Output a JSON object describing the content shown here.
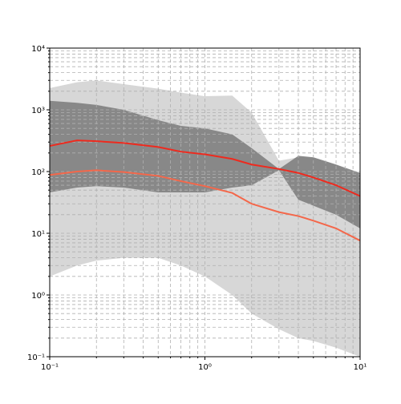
{
  "chart_data": {
    "type": "line",
    "xlog": true,
    "ylog": true,
    "grid": true,
    "xlim": [
      0.1,
      10
    ],
    "ylim": [
      0.1,
      10000
    ],
    "xticks": [
      {
        "value": 0.1,
        "label": "10⁻¹"
      },
      {
        "value": 1,
        "label": "10⁰"
      },
      {
        "value": 10,
        "label": "10¹"
      }
    ],
    "yticks": [
      {
        "value": 0.1,
        "label": "10⁻¹"
      },
      {
        "value": 1,
        "label": "10⁰"
      },
      {
        "value": 10,
        "label": "10¹"
      },
      {
        "value": 100,
        "label": "10²"
      },
      {
        "value": 1000,
        "label": "10³"
      },
      {
        "value": 10000,
        "label": "10⁴"
      }
    ],
    "xminorticks": [
      0.2,
      0.3,
      0.4,
      0.5,
      0.6,
      0.7,
      0.8,
      0.9,
      2,
      3,
      4,
      5,
      6,
      7,
      8,
      9
    ],
    "yminorticks": [
      0.2,
      0.3,
      0.4,
      0.5,
      0.6,
      0.7,
      0.8,
      0.9,
      2,
      3,
      4,
      5,
      6,
      7,
      8,
      9,
      20,
      30,
      40,
      50,
      60,
      70,
      80,
      90,
      200,
      300,
      400,
      500,
      600,
      700,
      800,
      900,
      2000,
      3000,
      4000,
      5000,
      6000,
      7000,
      8000,
      9000
    ],
    "x": [
      0.1,
      0.15,
      0.2,
      0.3,
      0.5,
      0.7,
      1,
      1.5,
      2,
      3,
      4,
      5,
      7,
      10
    ],
    "bands": [
      {
        "color": "#d3d3d3",
        "lower": [
          2,
          3,
          3.6,
          4,
          4,
          3,
          2,
          1,
          0.5,
          0.28,
          0.2,
          0.18,
          0.14,
          0.1
        ],
        "upper": [
          2250,
          2800,
          3000,
          2600,
          2200,
          1900,
          1660,
          1700,
          900,
          150,
          170,
          170,
          130,
          80
        ]
      },
      {
        "color": "#808080",
        "lower": [
          46,
          55,
          58,
          55,
          46,
          46,
          46,
          55,
          60,
          105,
          35,
          28,
          20,
          12
        ],
        "upper": [
          1400,
          1300,
          1200,
          1000,
          680,
          550,
          500,
          400,
          240,
          110,
          180,
          170,
          130,
          95
        ]
      }
    ],
    "series": [
      {
        "color": "#ee2a1e",
        "values": [
          260,
          320,
          310,
          290,
          250,
          210,
          190,
          160,
          130,
          110,
          95,
          80,
          60,
          40
        ]
      },
      {
        "color": "#f4674a",
        "values": [
          88,
          100,
          105,
          98,
          85,
          70,
          58,
          45,
          30,
          22,
          19,
          16,
          12,
          7.6
        ]
      }
    ]
  }
}
